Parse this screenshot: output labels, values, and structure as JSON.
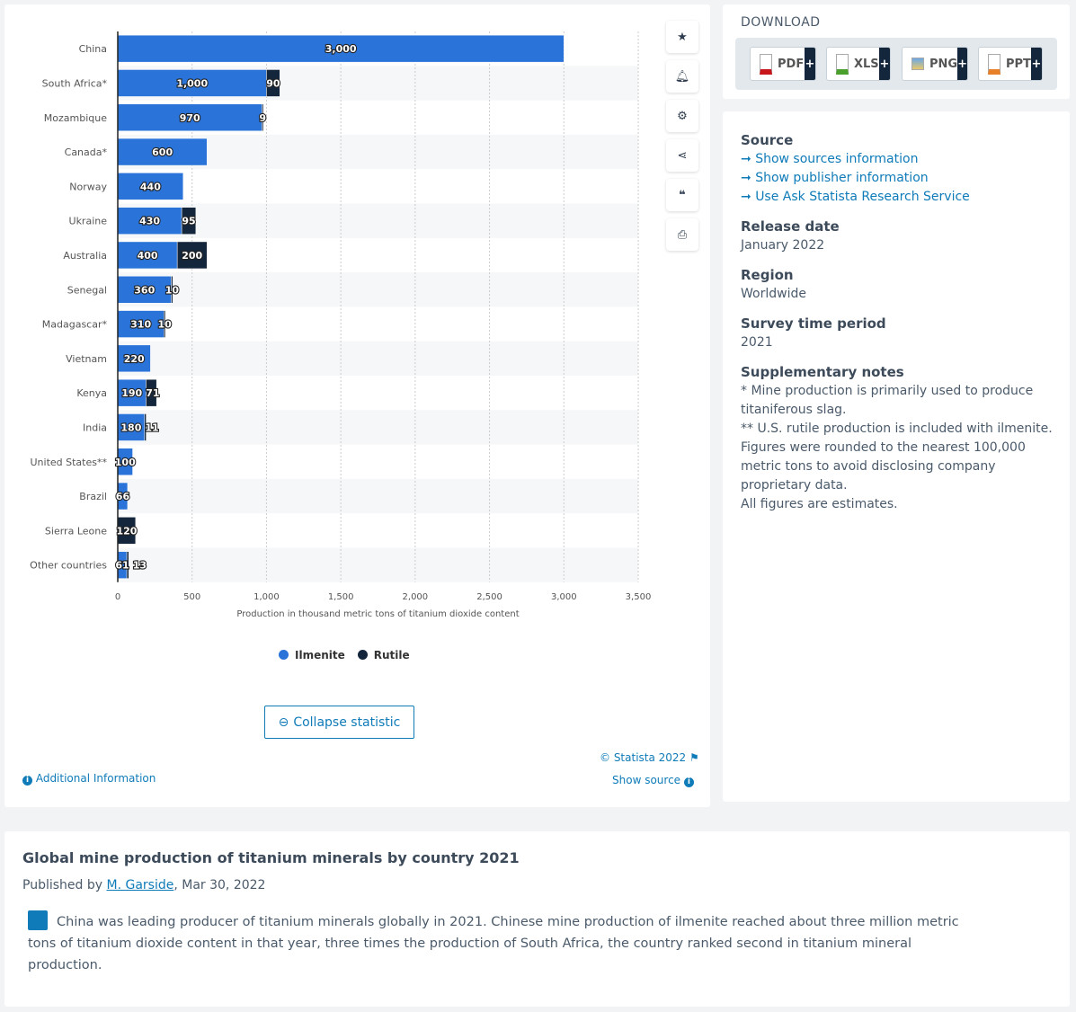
{
  "chart_data": {
    "type": "bar",
    "orientation": "horizontal",
    "stacked": true,
    "categories": [
      "China",
      "South Africa*",
      "Mozambique",
      "Canada*",
      "Norway",
      "Ukraine",
      "Australia",
      "Senegal",
      "Madagascar*",
      "Vietnam",
      "Kenya",
      "India",
      "United States**",
      "Brazil",
      "Sierra Leone",
      "Other countries"
    ],
    "series": [
      {
        "name": "Ilmenite",
        "color": "#2a73d9",
        "values": [
          3000,
          1000,
          970,
          600,
          440,
          430,
          400,
          360,
          310,
          220,
          190,
          180,
          100,
          66,
          null,
          61
        ]
      },
      {
        "name": "Rutile",
        "color": "#14263c",
        "values": [
          null,
          90,
          9,
          null,
          null,
          95,
          200,
          10,
          10,
          null,
          71,
          11,
          null,
          null,
          120,
          13
        ]
      }
    ],
    "xlabel": "Production in thousand metric tons of titanium dioxide content",
    "xlim": [
      0,
      3500
    ],
    "xticks": [
      "0",
      "500",
      "1,000",
      "1,500",
      "2,000",
      "2,500",
      "3,000",
      "3,500"
    ],
    "grid": true,
    "legend": "bottom"
  },
  "chart_actions": [
    "star-icon",
    "bell-icon",
    "gear-icon",
    "share-icon",
    "quote-icon",
    "print-icon"
  ],
  "collapse_label": "Collapse statistic",
  "additional_info": "Additional Information",
  "copyright": "© Statista 2022",
  "show_source": "Show source",
  "download": {
    "title": "DOWNLOAD",
    "buttons": [
      {
        "label": "PDF",
        "color": "#c8161d"
      },
      {
        "label": "XLS",
        "color": "#4aa02c"
      },
      {
        "label": "PNG",
        "color": "#2a73d9"
      },
      {
        "label": "PPT",
        "color": "#e8802a"
      }
    ]
  },
  "meta": {
    "source_title": "Source",
    "links": [
      "Show sources information",
      "Show publisher information",
      "Use Ask Statista Research Service"
    ],
    "release_title": "Release date",
    "release": "January 2022",
    "region_title": "Region",
    "region": "Worldwide",
    "period_title": "Survey time period",
    "period": "2021",
    "notes_title": "Supplementary notes",
    "notes": [
      "* Mine production is primarily used to produce titaniferous slag.",
      "** U.S. rutile production is included with ilmenite.",
      "Figures were rounded to the nearest 100,000 metric tons to avoid disclosing company proprietary data.",
      "All figures are estimates."
    ]
  },
  "title": "Global mine production of titanium minerals by country 2021",
  "published_prefix": "Published by ",
  "author": "M. Garside",
  "published_date": ", Mar 30, 2022",
  "description": "China was leading producer of titanium minerals globally in 2021. Chinese mine production of ilmenite reached about three million metric tons of titanium dioxide content in that year, three times the production of South Africa, the country ranked second in titanium mineral production."
}
